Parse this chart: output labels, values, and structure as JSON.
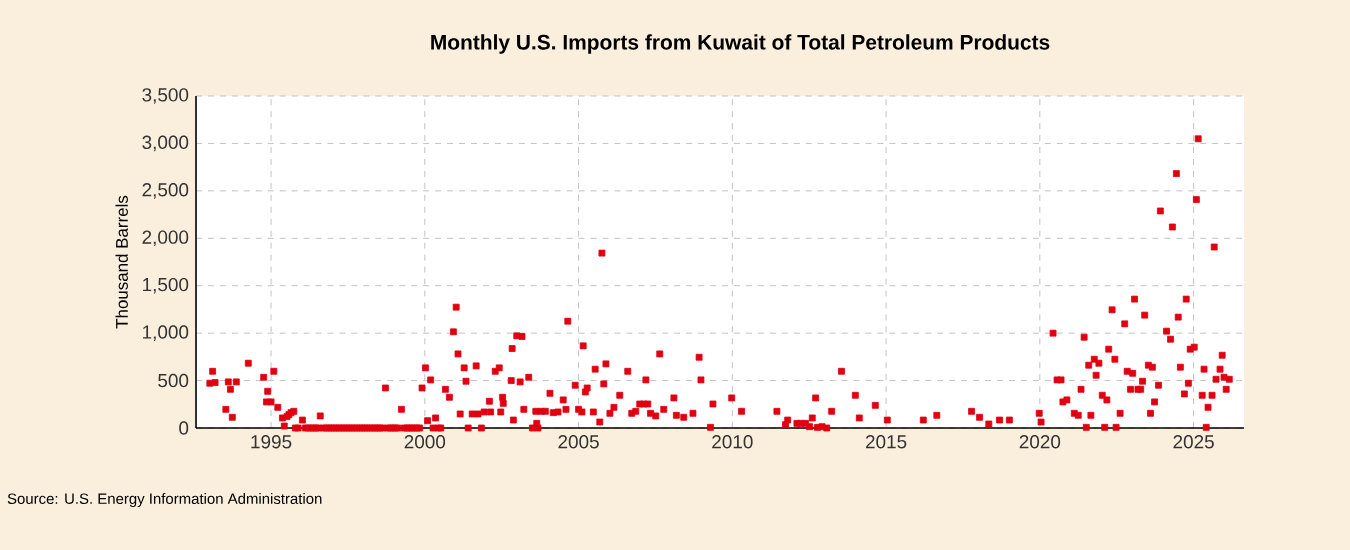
{
  "chart_data": {
    "type": "scatter",
    "title": "Monthly U.S. Imports from Kuwait of Total Petroleum Products",
    "ylabel": "Thousand Barrels",
    "annotations": [
      "Source: U.S. Energy Information Administration"
    ],
    "x": [
      1993.01,
      1993.1,
      1993.18,
      1993.53,
      1993.61,
      1993.68,
      1993.74,
      1993.87,
      1994.26,
      1994.76,
      1994.89,
      1994.85,
      1995.0,
      1995.09,
      1995.22,
      1995.37,
      1995.43,
      1995.52,
      1995.58,
      1995.65,
      1995.74,
      1996.02,
      1996.6,
      1998.72,
      1999.24,
      1999.91,
      2000.02,
      2000.09,
      2000.19,
      2000.35,
      2000.67,
      2000.8,
      2000.93,
      2001.02,
      2001.08,
      2001.15,
      2001.28,
      2001.34,
      2001.41,
      2001.54,
      2001.67,
      2001.73,
      2001.84,
      2001.93,
      2002.1,
      2002.14,
      2002.29,
      2002.42,
      2002.47,
      2002.53,
      2002.55,
      2002.81,
      2002.84,
      2002.88,
      2002.99,
      2003.1,
      2003.16,
      2003.22,
      2003.38,
      2003.5,
      2003.61,
      2003.64,
      2003.68,
      2003.79,
      2003.92,
      2004.07,
      2004.18,
      2004.33,
      2004.5,
      2004.59,
      2004.65,
      2004.89,
      2005.0,
      2005.11,
      2005.15,
      2005.22,
      2005.28,
      2005.48,
      2005.54,
      2005.69,
      2005.76,
      2005.82,
      2005.89,
      2006.02,
      2006.15,
      2006.34,
      2006.6,
      2006.73,
      2006.86,
      2006.99,
      2007.12,
      2007.19,
      2007.25,
      2007.34,
      2007.51,
      2007.64,
      2007.77,
      2008.1,
      2008.18,
      2008.42,
      2008.72,
      2008.92,
      2008.98,
      2009.29,
      2009.37,
      2009.98,
      2010.3,
      2011.45,
      2011.73,
      2011.8,
      2012.1,
      2012.23,
      2012.38,
      2012.51,
      2012.6,
      2012.71,
      2012.77,
      2012.92,
      2013.07,
      2013.23,
      2013.55,
      2014.0,
      2014.13,
      2014.65,
      2015.04,
      2016.21,
      2016.65,
      2017.78,
      2018.04,
      2018.34,
      2018.69,
      2019.01,
      2019.98,
      2020.04,
      2020.43,
      2020.56,
      2020.69,
      2020.75,
      2020.88,
      2021.12,
      2021.25,
      2021.34,
      2021.44,
      2021.51,
      2021.59,
      2021.66,
      2021.77,
      2021.83,
      2021.92,
      2022.03,
      2022.11,
      2022.18,
      2022.24,
      2022.35,
      2022.44,
      2022.48,
      2022.61,
      2022.76,
      2022.84,
      2022.95,
      2023.02,
      2023.08,
      2023.19,
      2023.28,
      2023.34,
      2023.41,
      2023.53,
      2023.6,
      2023.66,
      2023.73,
      2023.86,
      2023.92,
      2024.12,
      2024.25,
      2024.31,
      2024.44,
      2024.5,
      2024.57,
      2024.7,
      2024.76,
      2024.83,
      2024.89,
      2025.02,
      2025.09,
      2025.15,
      2025.28,
      2025.34,
      2025.41,
      2025.47,
      2025.6,
      2025.67,
      2025.73,
      2025.86,
      2025.93,
      2025.99,
      2026.06,
      2026.16,
      1995.79,
      1995.88,
      1996.12,
      1996.21,
      1996.29,
      1996.38,
      1996.46,
      1996.54,
      1996.71,
      1996.79,
      1996.88,
      1996.96,
      1997.04,
      1997.12,
      1997.21,
      1997.29,
      1997.38,
      1997.46,
      1997.54,
      1997.62,
      1997.71,
      1997.79,
      1997.88,
      1997.96,
      1998.04,
      1998.12,
      1998.21,
      1998.29,
      1998.38,
      1998.46,
      1998.54,
      1998.62,
      1998.79,
      1998.88,
      1998.96,
      1999.04,
      1999.12,
      1999.33,
      1999.42,
      1999.5,
      1999.58,
      1999.67,
      1999.75,
      1999.83,
      2000.27,
      2000.44,
      2000.52
    ],
    "values": [
      472,
      598,
      479,
      197,
      486,
      408,
      113,
      486,
      683,
      535,
      387,
      275,
      275,
      598,
      218,
      106,
      21,
      120,
      141,
      162,
      176,
      84,
      127,
      422,
      197,
      422,
      634,
      77,
      507,
      106,
      408,
      324,
      1014,
      1274,
      781,
      148,
      634,
      493,
      0,
      148,
      655,
      148,
      0,
      169,
      282,
      169,
      598,
      634,
      169,
      324,
      260,
      500,
      838,
      84,
      972,
      486,
      965,
      197,
      535,
      0,
      176,
      49,
      0,
      176,
      176,
      366,
      162,
      169,
      296,
      197,
      1126,
      451,
      197,
      169,
      866,
      380,
      422,
      169,
      620,
      63,
      1844,
      465,
      676,
      155,
      218,
      345,
      598,
      155,
      176,
      253,
      253,
      507,
      253,
      155,
      127,
      781,
      197,
      317,
      134,
      113,
      155,
      746,
      507,
      7,
      253,
      317,
      176,
      176,
      35,
      84,
      49,
      49,
      49,
      14,
      106,
      317,
      7,
      14,
      0,
      176,
      598,
      345,
      106,
      239,
      84,
      84,
      134,
      176,
      113,
      42,
      84,
      84,
      155,
      63,
      1000,
      507,
      507,
      275,
      296,
      155,
      134,
      408,
      957,
      7,
      662,
      134,
      725,
      556,
      683,
      345,
      7,
      296,
      831,
      1246,
      725,
      7,
      155,
      1098,
      598,
      408,
      577,
      1359,
      408,
      408,
      493,
      1190,
      662,
      155,
      641,
      275,
      451,
      2288,
      1021,
      936,
      2119,
      2682,
      1169,
      641,
      359,
      1359,
      472,
      831,
      852,
      2408,
      3049,
      345,
      620,
      7,
      218,
      345,
      1908,
      514,
      620,
      767,
      535,
      408,
      514,
      0,
      0,
      0,
      0,
      0,
      0,
      0,
      0,
      0,
      0,
      0,
      0,
      0,
      0,
      0,
      0,
      0,
      0,
      0,
      0,
      0,
      0,
      0,
      0,
      0,
      0,
      0,
      0,
      0,
      0,
      0,
      0,
      0,
      0,
      0,
      0,
      0,
      0,
      0,
      0,
      0,
      0,
      0,
      0,
      0,
      0,
      0
    ],
    "color": "#e00010",
    "marker": "square",
    "xlim": [
      1992.56,
      2026.64
    ],
    "ylim": [
      0,
      3500
    ],
    "xticks": [
      1995,
      2000,
      2005,
      2010,
      2015,
      2020,
      2025
    ],
    "yticks": [
      {
        "value": 0,
        "label": "0"
      },
      {
        "value": 500,
        "label": "500"
      },
      {
        "value": 1000,
        "label": "1,000"
      },
      {
        "value": 1500,
        "label": "1,500"
      },
      {
        "value": 2000,
        "label": "2,000"
      },
      {
        "value": 2500,
        "label": "2,500"
      },
      {
        "value": 3000,
        "label": "3,000"
      },
      {
        "value": 3500,
        "label": "3,500"
      }
    ],
    "grid": true
  }
}
